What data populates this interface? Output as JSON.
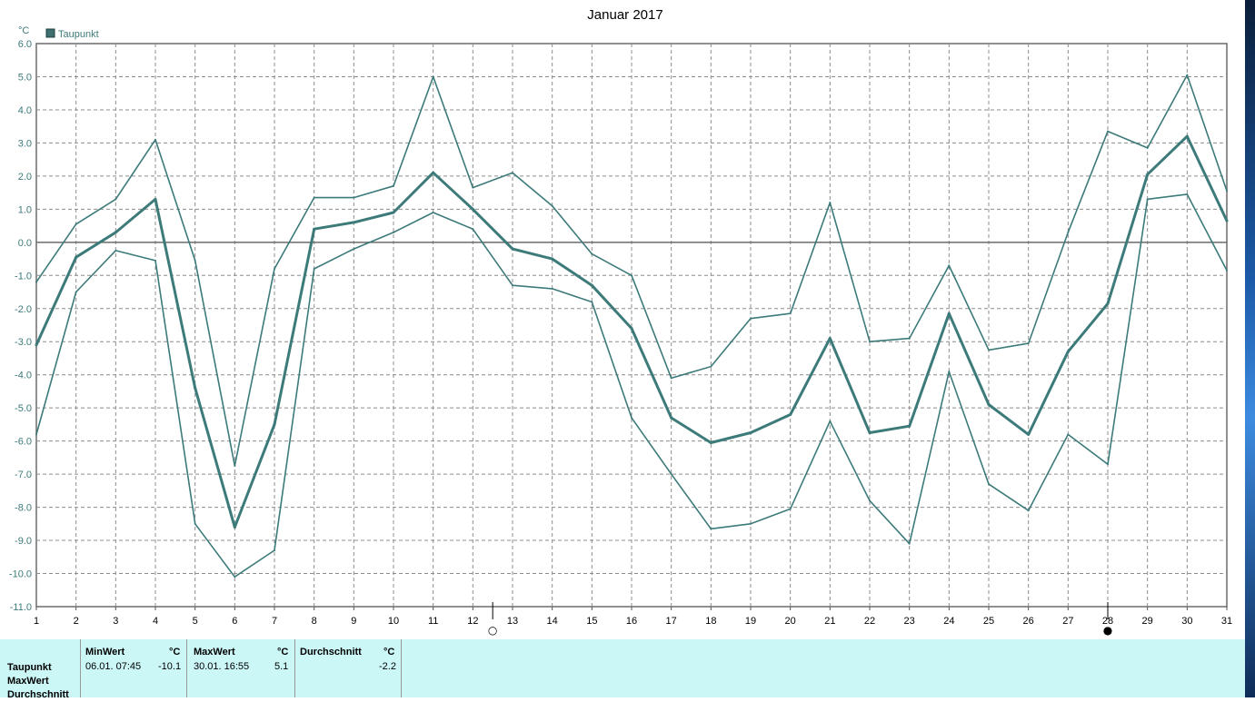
{
  "chart_data": {
    "type": "line",
    "title": "Januar 2017",
    "ylabel": "°C",
    "xlabel": "",
    "ylim": [
      -11.0,
      6.0
    ],
    "yticks": [
      "6.0",
      "5.0",
      "4.0",
      "3.0",
      "2.0",
      "1.0",
      "0.0",
      "-1.0",
      "-2.0",
      "-3.0",
      "-4.0",
      "-5.0",
      "-6.0",
      "-7.0",
      "-8.0",
      "-9.0",
      "-10.0",
      "-11.0"
    ],
    "x": [
      1,
      2,
      3,
      4,
      5,
      6,
      7,
      8,
      9,
      10,
      11,
      12,
      13,
      14,
      15,
      16,
      17,
      18,
      19,
      20,
      21,
      22,
      23,
      24,
      25,
      26,
      27,
      28,
      29,
      30,
      31
    ],
    "legend": "Taupunkt",
    "legend_position": "top-left",
    "grid": true,
    "series": [
      {
        "role": "max",
        "color": "#3d7a7a",
        "values": [
          -1.2,
          0.55,
          1.3,
          3.1,
          -0.55,
          -6.75,
          -0.8,
          1.35,
          1.35,
          1.7,
          5.0,
          1.65,
          2.1,
          1.1,
          -0.35,
          -1.0,
          -4.1,
          -3.75,
          -2.3,
          -2.15,
          1.2,
          -3.0,
          -2.9,
          -0.7,
          -3.25,
          -3.05,
          0.3,
          3.35,
          2.85,
          5.05,
          1.55
        ]
      },
      {
        "role": "avg",
        "color": "#3d7a7a",
        "values": [
          -3.1,
          -0.45,
          0.3,
          1.3,
          -4.4,
          -8.6,
          -5.5,
          0.4,
          0.6,
          0.9,
          2.1,
          1.0,
          -0.2,
          -0.5,
          -1.3,
          -2.6,
          -5.3,
          -6.05,
          -5.75,
          -5.2,
          -2.9,
          -5.75,
          -5.55,
          -2.15,
          -4.9,
          -5.8,
          -3.3,
          -1.85,
          2.05,
          3.2,
          0.65
        ]
      },
      {
        "role": "min",
        "color": "#3d7a7a",
        "values": [
          -5.8,
          -1.5,
          -0.25,
          -0.55,
          -8.5,
          -10.1,
          -9.3,
          -0.8,
          -0.2,
          0.3,
          0.9,
          0.4,
          -1.3,
          -1.4,
          -1.8,
          -5.3,
          -7.0,
          -8.65,
          -8.5,
          -8.05,
          -5.4,
          -7.8,
          -9.1,
          -3.9,
          -7.3,
          -8.1,
          -5.8,
          -6.7,
          1.3,
          1.45,
          -0.85
        ]
      }
    ],
    "markers": [
      {
        "day": 12.5,
        "symbol": "○"
      },
      {
        "day": 28,
        "symbol": "●"
      }
    ]
  },
  "stats": {
    "row_labels": [
      "Taupunkt",
      "MaxWert",
      "Durchschnitt"
    ],
    "columns": [
      {
        "header": "MinWert",
        "unit": "°C",
        "datetime": "06.01.  07:45",
        "value": "-10.1"
      },
      {
        "header": "MaxWert",
        "unit": "°C",
        "datetime": "30.01.  16:55",
        "value": "5.1"
      },
      {
        "header": "Durchschnitt",
        "unit": "°C",
        "datetime": "",
        "value": "-2.2"
      }
    ]
  }
}
